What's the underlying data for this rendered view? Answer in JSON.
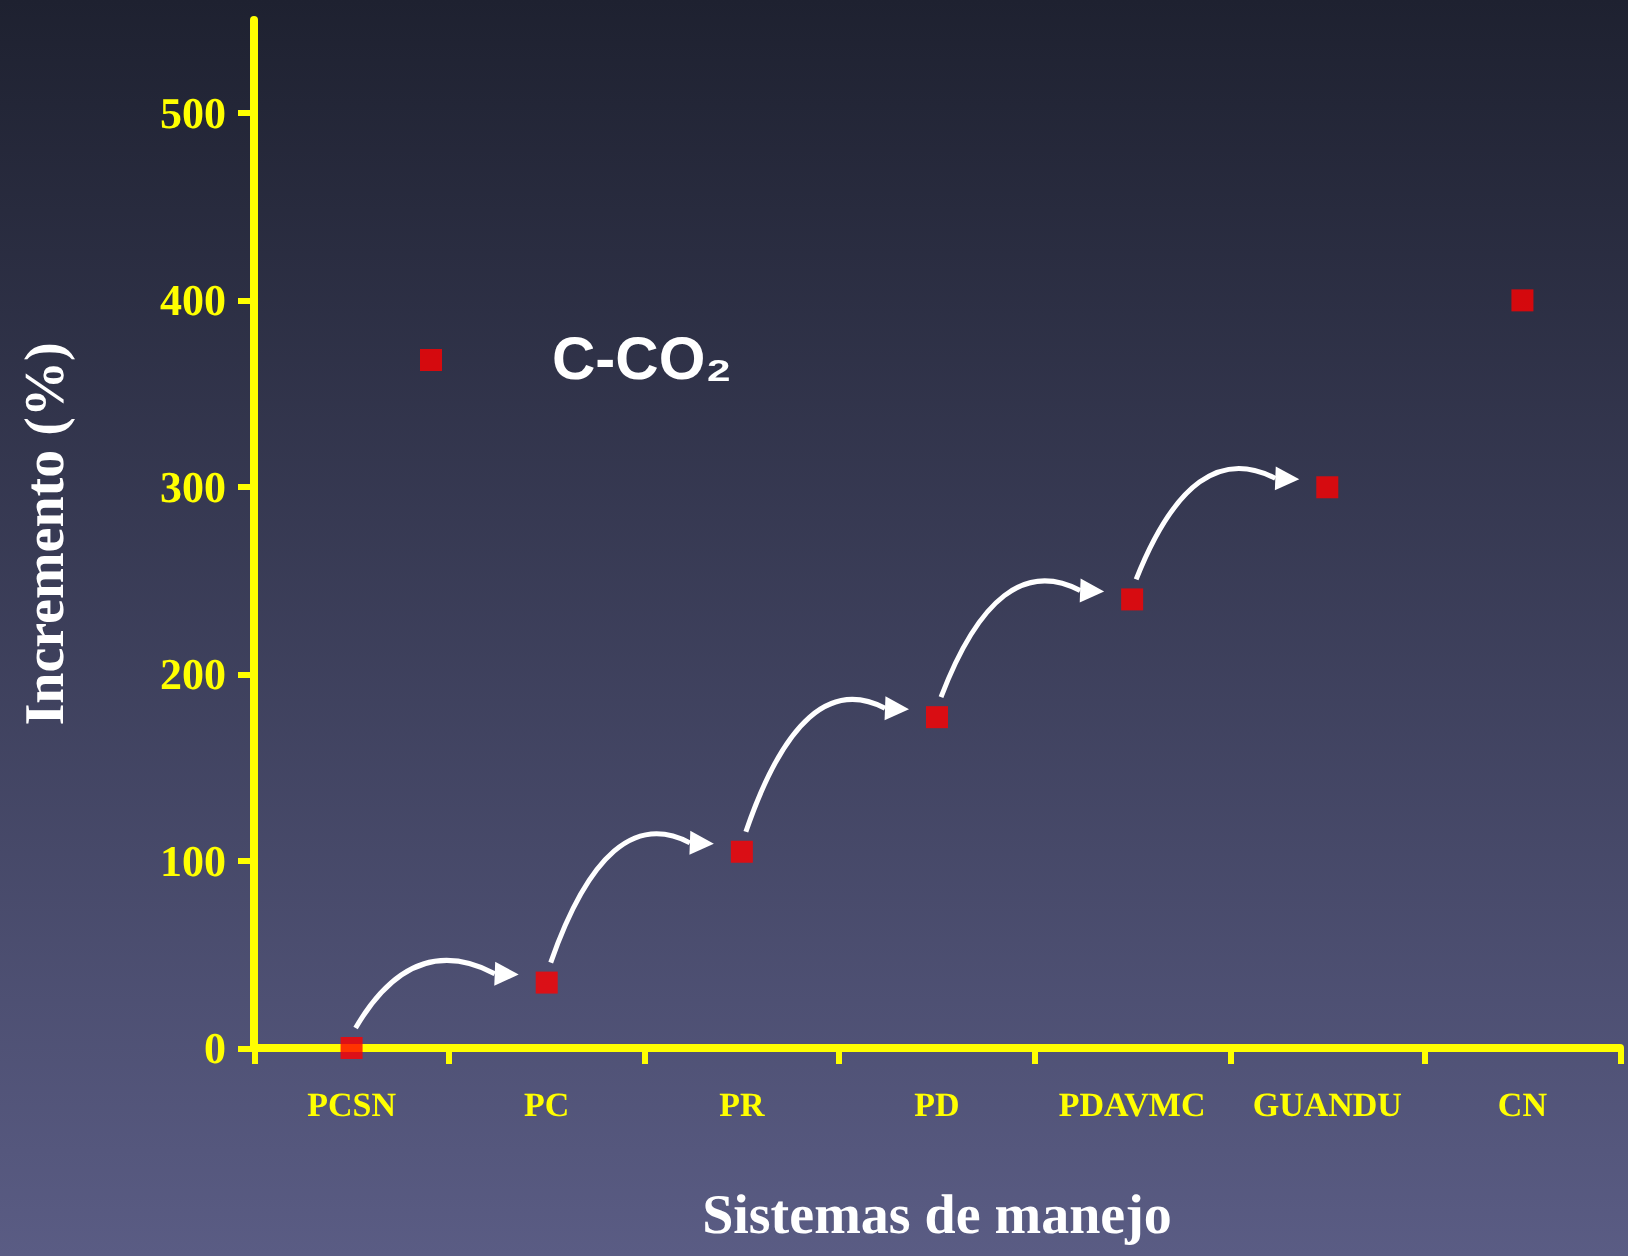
{
  "chart_data": {
    "type": "scatter",
    "xlabel": "Sistemas de manejo",
    "ylabel": "Incremento (%)",
    "categories": [
      "PCSN",
      "PC",
      "PR",
      "PD",
      "PDAVMC",
      "GUANDU",
      "CN"
    ],
    "series": [
      {
        "name": "C-CO₂",
        "color": "#ff0000",
        "values": [
          0,
          35,
          105,
          177,
          240,
          300,
          400
        ]
      }
    ],
    "ylim": [
      0,
      550
    ],
    "yticks": [
      0,
      100,
      200,
      300,
      400,
      500
    ],
    "grid": false,
    "legend": "top left",
    "marker": "square"
  }
}
